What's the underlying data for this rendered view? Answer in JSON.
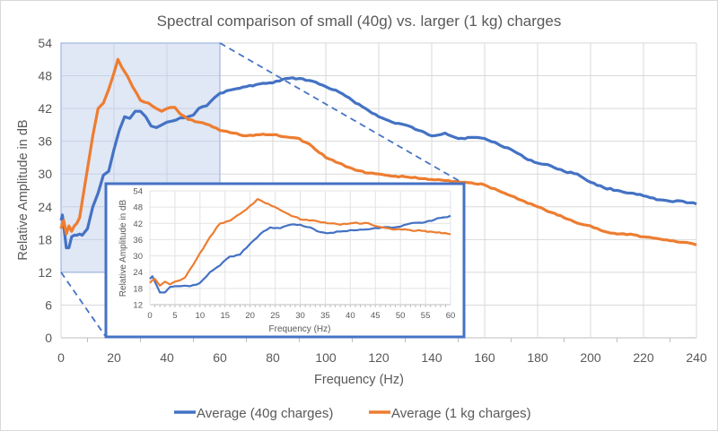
{
  "chart_data": {
    "type": "line",
    "title": "Spectral comparison of small (40g) vs. larger (1 kg) charges",
    "xlabel": "Frequency (Hz)",
    "ylabel": "Relative Amplitude in dB",
    "xlim": [
      0,
      240
    ],
    "ylim": [
      0,
      54
    ],
    "xticks": [
      "0",
      "20",
      "40",
      "60",
      "80",
      "100",
      "120",
      "140",
      "160",
      "180",
      "200",
      "220",
      "240"
    ],
    "yticks": [
      "0",
      "6",
      "12",
      "18",
      "24",
      "30",
      "36",
      "42",
      "48",
      "54"
    ],
    "grid": true,
    "legend_position": "bottom",
    "colors": {
      "series_40g": "#4472c4",
      "series_1kg": "#ed7d31",
      "highlight_fill": "#dae3f3"
    },
    "zoom_region": {
      "x": [
        0,
        60
      ],
      "y": [
        12,
        54
      ]
    },
    "series": [
      {
        "name": "Average (40g charges)",
        "x": [
          0,
          0.5,
          1,
          2,
          3,
          4,
          5,
          6,
          7,
          8,
          10,
          12,
          14,
          16,
          18,
          20,
          22,
          24,
          26,
          28,
          30,
          32,
          34,
          36,
          38,
          40,
          42,
          45,
          48,
          50,
          52,
          55,
          58,
          60,
          65,
          70,
          75,
          80,
          85,
          90,
          95,
          100,
          105,
          110,
          115,
          120,
          125,
          130,
          135,
          140,
          145,
          150,
          155,
          160,
          165,
          170,
          175,
          180,
          185,
          190,
          195,
          200,
          205,
          210,
          215,
          220,
          225,
          230,
          235,
          240
        ],
        "values": [
          21.5,
          22.5,
          20.5,
          16.5,
          16.5,
          18.5,
          18.8,
          18.8,
          19,
          18.8,
          20,
          24,
          26.5,
          29.8,
          30.5,
          34.5,
          38,
          40.5,
          40.2,
          41.5,
          41.5,
          40.5,
          38.8,
          38.5,
          39,
          39.5,
          39.7,
          40.3,
          40.5,
          40.8,
          42,
          42.5,
          44,
          44.8,
          45.5,
          46,
          46.5,
          46.7,
          47.5,
          47.5,
          47,
          46,
          45,
          43.5,
          42,
          40.5,
          39.5,
          39,
          38,
          37,
          37.5,
          36.5,
          36.7,
          36.5,
          35.5,
          34.5,
          33,
          32,
          31.5,
          30.5,
          30,
          28.5,
          27.5,
          27,
          26.5,
          26,
          25.3,
          25,
          25,
          24.5
        ]
      },
      {
        "name": "Average (1 kg charges)",
        "x": [
          0,
          0.5,
          1,
          2,
          3,
          4,
          5,
          6,
          7,
          8,
          10,
          12,
          14,
          16,
          18,
          20,
          21.5,
          23,
          25,
          27,
          30,
          33,
          36,
          38,
          40,
          43,
          45,
          48,
          52,
          56,
          60,
          65,
          70,
          75,
          80,
          85,
          90,
          95,
          100,
          105,
          110,
          115,
          120,
          125,
          130,
          135,
          140,
          145,
          150,
          155,
          160,
          165,
          170,
          175,
          180,
          185,
          190,
          195,
          200,
          205,
          210,
          215,
          220,
          225,
          230,
          235,
          240
        ],
        "values": [
          20,
          21,
          21.5,
          19,
          20.5,
          19.5,
          20.5,
          21,
          22,
          25,
          31,
          37,
          42,
          43,
          45.5,
          48.5,
          51,
          49.5,
          48,
          46,
          43.5,
          43,
          42,
          41.5,
          42,
          42.2,
          41,
          40,
          39.5,
          39,
          38,
          37.5,
          37,
          37.2,
          37.2,
          36.8,
          36.5,
          35,
          33,
          32,
          31,
          30.2,
          30,
          29.6,
          29.5,
          29.2,
          29,
          28.8,
          28.6,
          28.4,
          28,
          27,
          26,
          25,
          24,
          23,
          22,
          21,
          20.5,
          19.5,
          19,
          19,
          18.5,
          18.2,
          17.8,
          17.5,
          17
        ]
      }
    ],
    "inset": {
      "xlabel": "Frequency (Hz)",
      "ylabel": "Relative Amplitude in dB",
      "xlim": [
        0,
        60
      ],
      "ylim": [
        12,
        54
      ],
      "xticks": [
        "0",
        "5",
        "10",
        "15",
        "20",
        "25",
        "30",
        "35",
        "40",
        "45",
        "50",
        "55",
        "60"
      ],
      "yticks": [
        "12",
        "18",
        "24",
        "30",
        "36",
        "42",
        "48",
        "54"
      ]
    }
  }
}
